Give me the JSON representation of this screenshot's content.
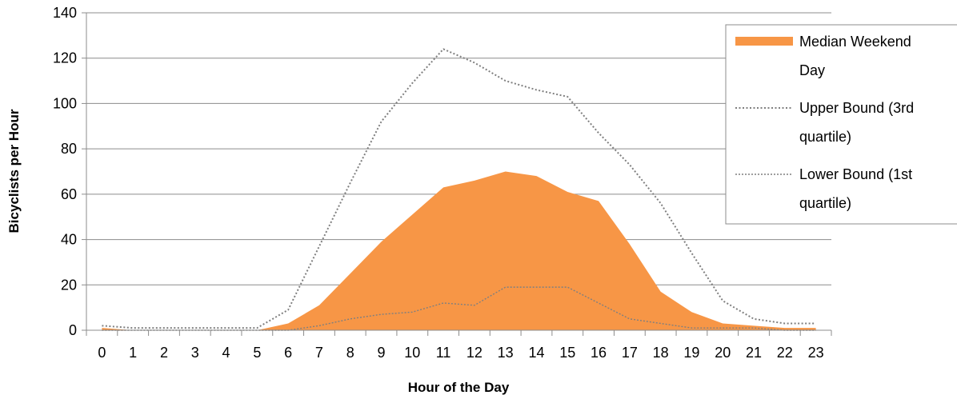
{
  "chart_data": {
    "type": "area",
    "title": "",
    "xlabel": "Hour of the Day",
    "ylabel": "Bicyclists per Hour",
    "categories": [
      "0",
      "1",
      "2",
      "3",
      "4",
      "5",
      "6",
      "7",
      "8",
      "9",
      "10",
      "11",
      "12",
      "13",
      "14",
      "15",
      "16",
      "17",
      "18",
      "19",
      "20",
      "21",
      "22",
      "23"
    ],
    "ylim": [
      0,
      140
    ],
    "yticks": [
      0,
      20,
      40,
      60,
      80,
      100,
      120,
      140
    ],
    "grid": true,
    "legend_position": "right",
    "series": [
      {
        "name": "Median Weekend Day",
        "kind": "area",
        "color": "#f79646",
        "values": [
          1,
          0,
          0,
          0,
          0,
          0,
          3,
          11,
          25,
          39,
          51,
          63,
          66,
          70,
          68,
          61,
          57,
          38,
          17,
          8,
          3,
          2,
          1,
          1
        ]
      },
      {
        "name": "Upper Bound (3rd quartile)",
        "kind": "line",
        "color": "#7f7f7f",
        "dash": "dotted",
        "values": [
          2,
          1,
          1,
          1,
          1,
          1,
          9,
          37,
          65,
          92,
          109,
          124,
          118,
          110,
          106,
          103,
          87,
          73,
          56,
          34,
          13,
          5,
          3,
          3
        ]
      },
      {
        "name": "Lower Bound (1st quartile)",
        "kind": "line",
        "color": "#7f7f7f",
        "dash": "dotted",
        "values": [
          0,
          0,
          0,
          0,
          0,
          0,
          0,
          2,
          5,
          7,
          8,
          12,
          11,
          19,
          19,
          19,
          12,
          5,
          3,
          1,
          1,
          1,
          0,
          0
        ]
      }
    ],
    "legend": [
      {
        "line1": "Median Weekend",
        "line2": "Day"
      },
      {
        "line1": "Upper Bound (3rd",
        "line2": "quartile)"
      },
      {
        "line1": "Lower Bound (1st",
        "line2": "quartile)"
      }
    ]
  }
}
